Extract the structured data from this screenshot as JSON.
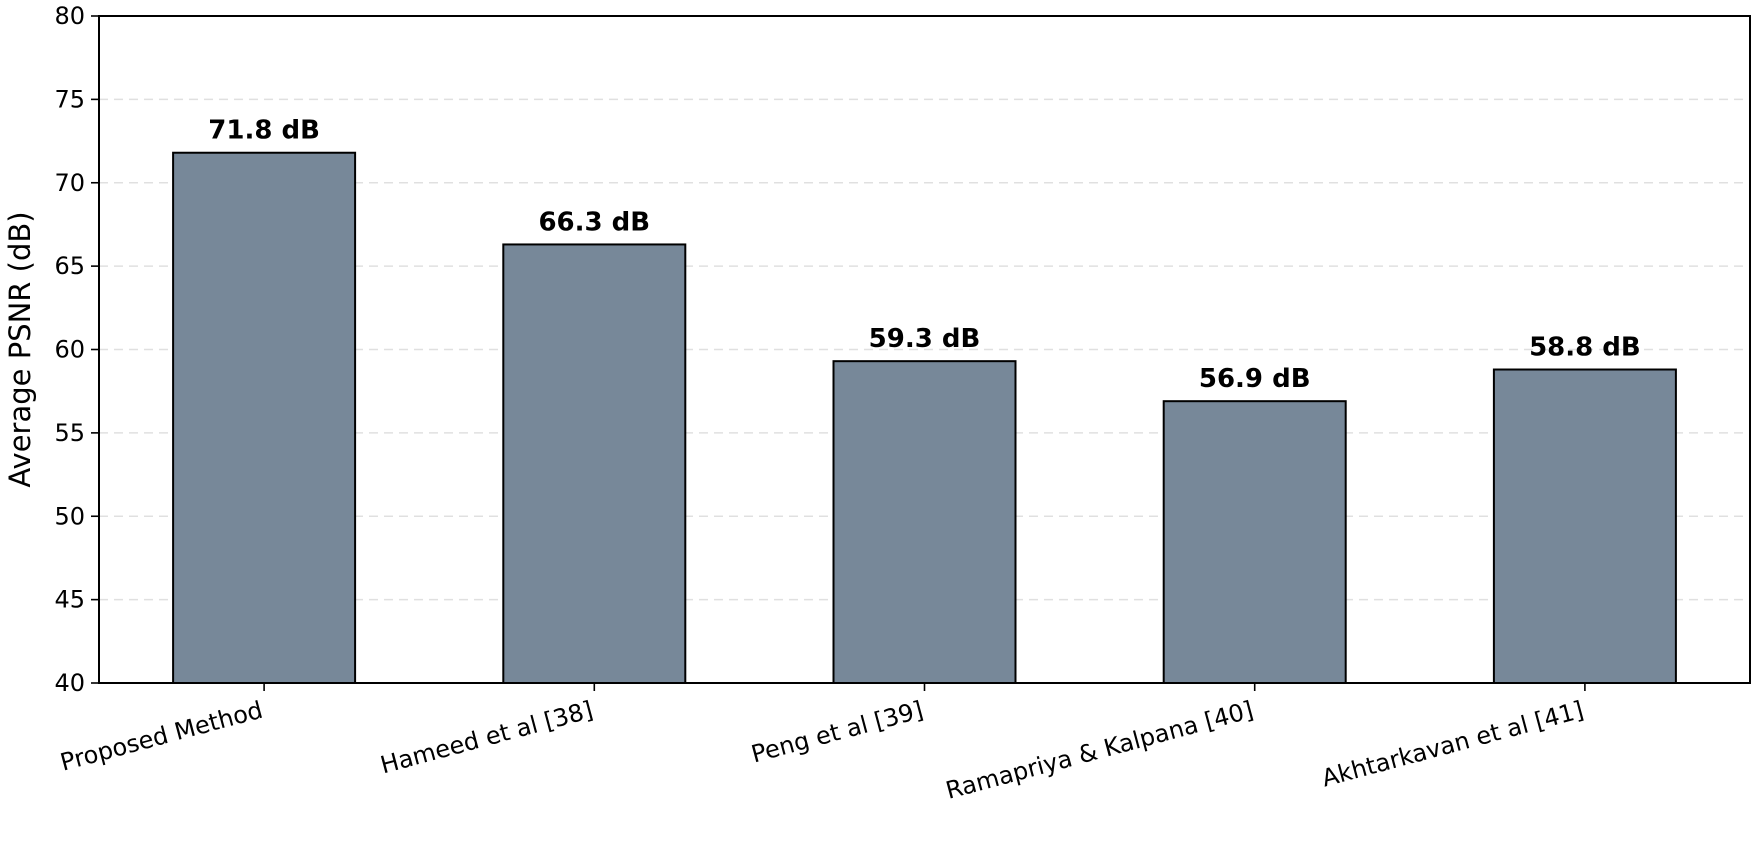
{
  "chart_data": {
    "type": "bar",
    "title": "",
    "xlabel": "",
    "ylabel": "Average PSNR (dB)",
    "categories": [
      "Proposed Method",
      "Hameed et al [38]",
      "Peng et al [39]",
      "Ramapriya & Kalpana [40]",
      "Akhtarkavan et al [41]"
    ],
    "values": [
      71.8,
      66.3,
      59.3,
      56.9,
      58.8
    ],
    "data_labels": [
      "71.8 dB",
      "66.3 dB",
      "59.3 dB",
      "56.9 dB",
      "58.8 dB"
    ],
    "ylim": [
      40,
      80
    ],
    "yticks": [
      40,
      45,
      50,
      55,
      60,
      65,
      70,
      75,
      80
    ],
    "ytick_labels": [
      "40",
      "45",
      "50",
      "55",
      "60",
      "65",
      "70",
      "75",
      "80"
    ],
    "grid": {
      "y": true,
      "x": false,
      "style": "dashed"
    },
    "colors": {
      "bar_fill": "#778899",
      "bar_edge": "#000000",
      "grid": "#e0e0e0",
      "axis": "#000000"
    }
  }
}
